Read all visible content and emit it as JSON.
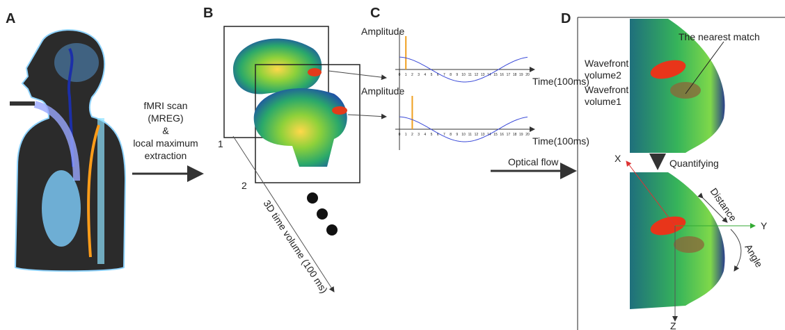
{
  "panel_labels": [
    "A",
    "B",
    "C",
    "D"
  ],
  "arrow_a": {
    "lines": [
      "fMRI scan",
      "(MREG)",
      "&",
      "local maximum",
      "extraction"
    ]
  },
  "panel_b": {
    "volume_numbers": [
      "1",
      "2"
    ],
    "axis_label": "3D time volume (100 ms)"
  },
  "panel_c": {
    "charts": [
      {
        "y_label": "Amplitude",
        "x_label": "Time(100ms)",
        "x_ticks": [
          0,
          1,
          2,
          3,
          4,
          5,
          6,
          7,
          8,
          9,
          10,
          11,
          12,
          13,
          14,
          15,
          16,
          17,
          18,
          19,
          20
        ]
      },
      {
        "y_label": "Amplitude",
        "x_label": "Time(100ms)",
        "x_ticks": [
          0,
          1,
          2,
          3,
          4,
          5,
          6,
          7,
          8,
          9,
          10,
          11,
          12,
          13,
          14,
          15,
          16,
          17,
          18,
          19,
          20
        ]
      }
    ]
  },
  "panel_d": {
    "nearest_match": "The nearest match",
    "wavefront2": [
      "Wavefront",
      "volume2"
    ],
    "wavefront1": [
      "Wavefront",
      "volume1"
    ],
    "optical_flow": "Optical flow",
    "quantifying": "Quantifying",
    "axes": [
      "X",
      "Y",
      "Z"
    ],
    "distance": "Distance",
    "angle": "Angle"
  }
}
